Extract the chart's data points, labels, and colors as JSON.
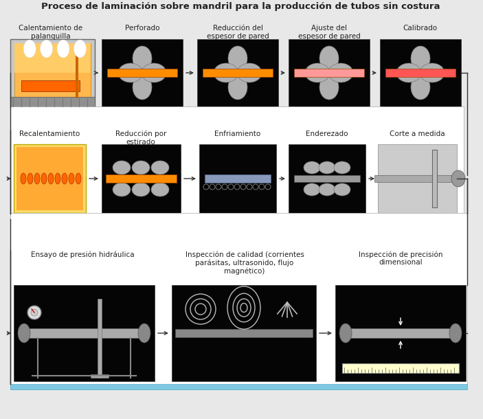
{
  "title": "Proceso de laminación sobre mandril para la producción de tubos sin costura",
  "title_fontsize": 9.5,
  "bg_color": "#e8e8e8",
  "row1_labels": [
    "Calentamiento de\npalanquilla",
    "Perforado",
    "Reducción del\nespesor de pared",
    "Ajuste del\nespesor de pared",
    "Calibrado"
  ],
  "row2_labels": [
    "Recalentamiento",
    "Reducción por\nestirado",
    "Enfriamiento",
    "Enderezado",
    "Corte a medida"
  ],
  "row3_labels": [
    "Ensayo de presión hidráulica",
    "Inspección de calidad (corrientes\nparásitas, ultrasonido, flujo\nmagnético)",
    "Inspección de precisión\ndimensional"
  ],
  "blue_bar": "#7EC8E3",
  "black": "#000000",
  "white": "#ffffff",
  "orange": "#FF8C00",
  "light_orange": "#FFB84D",
  "gray_roller": "#A8A8A8",
  "gray_tube": "#BBBBBB",
  "furnace_yellow": "#FFD966",
  "furnace_orange": "#FF9900"
}
